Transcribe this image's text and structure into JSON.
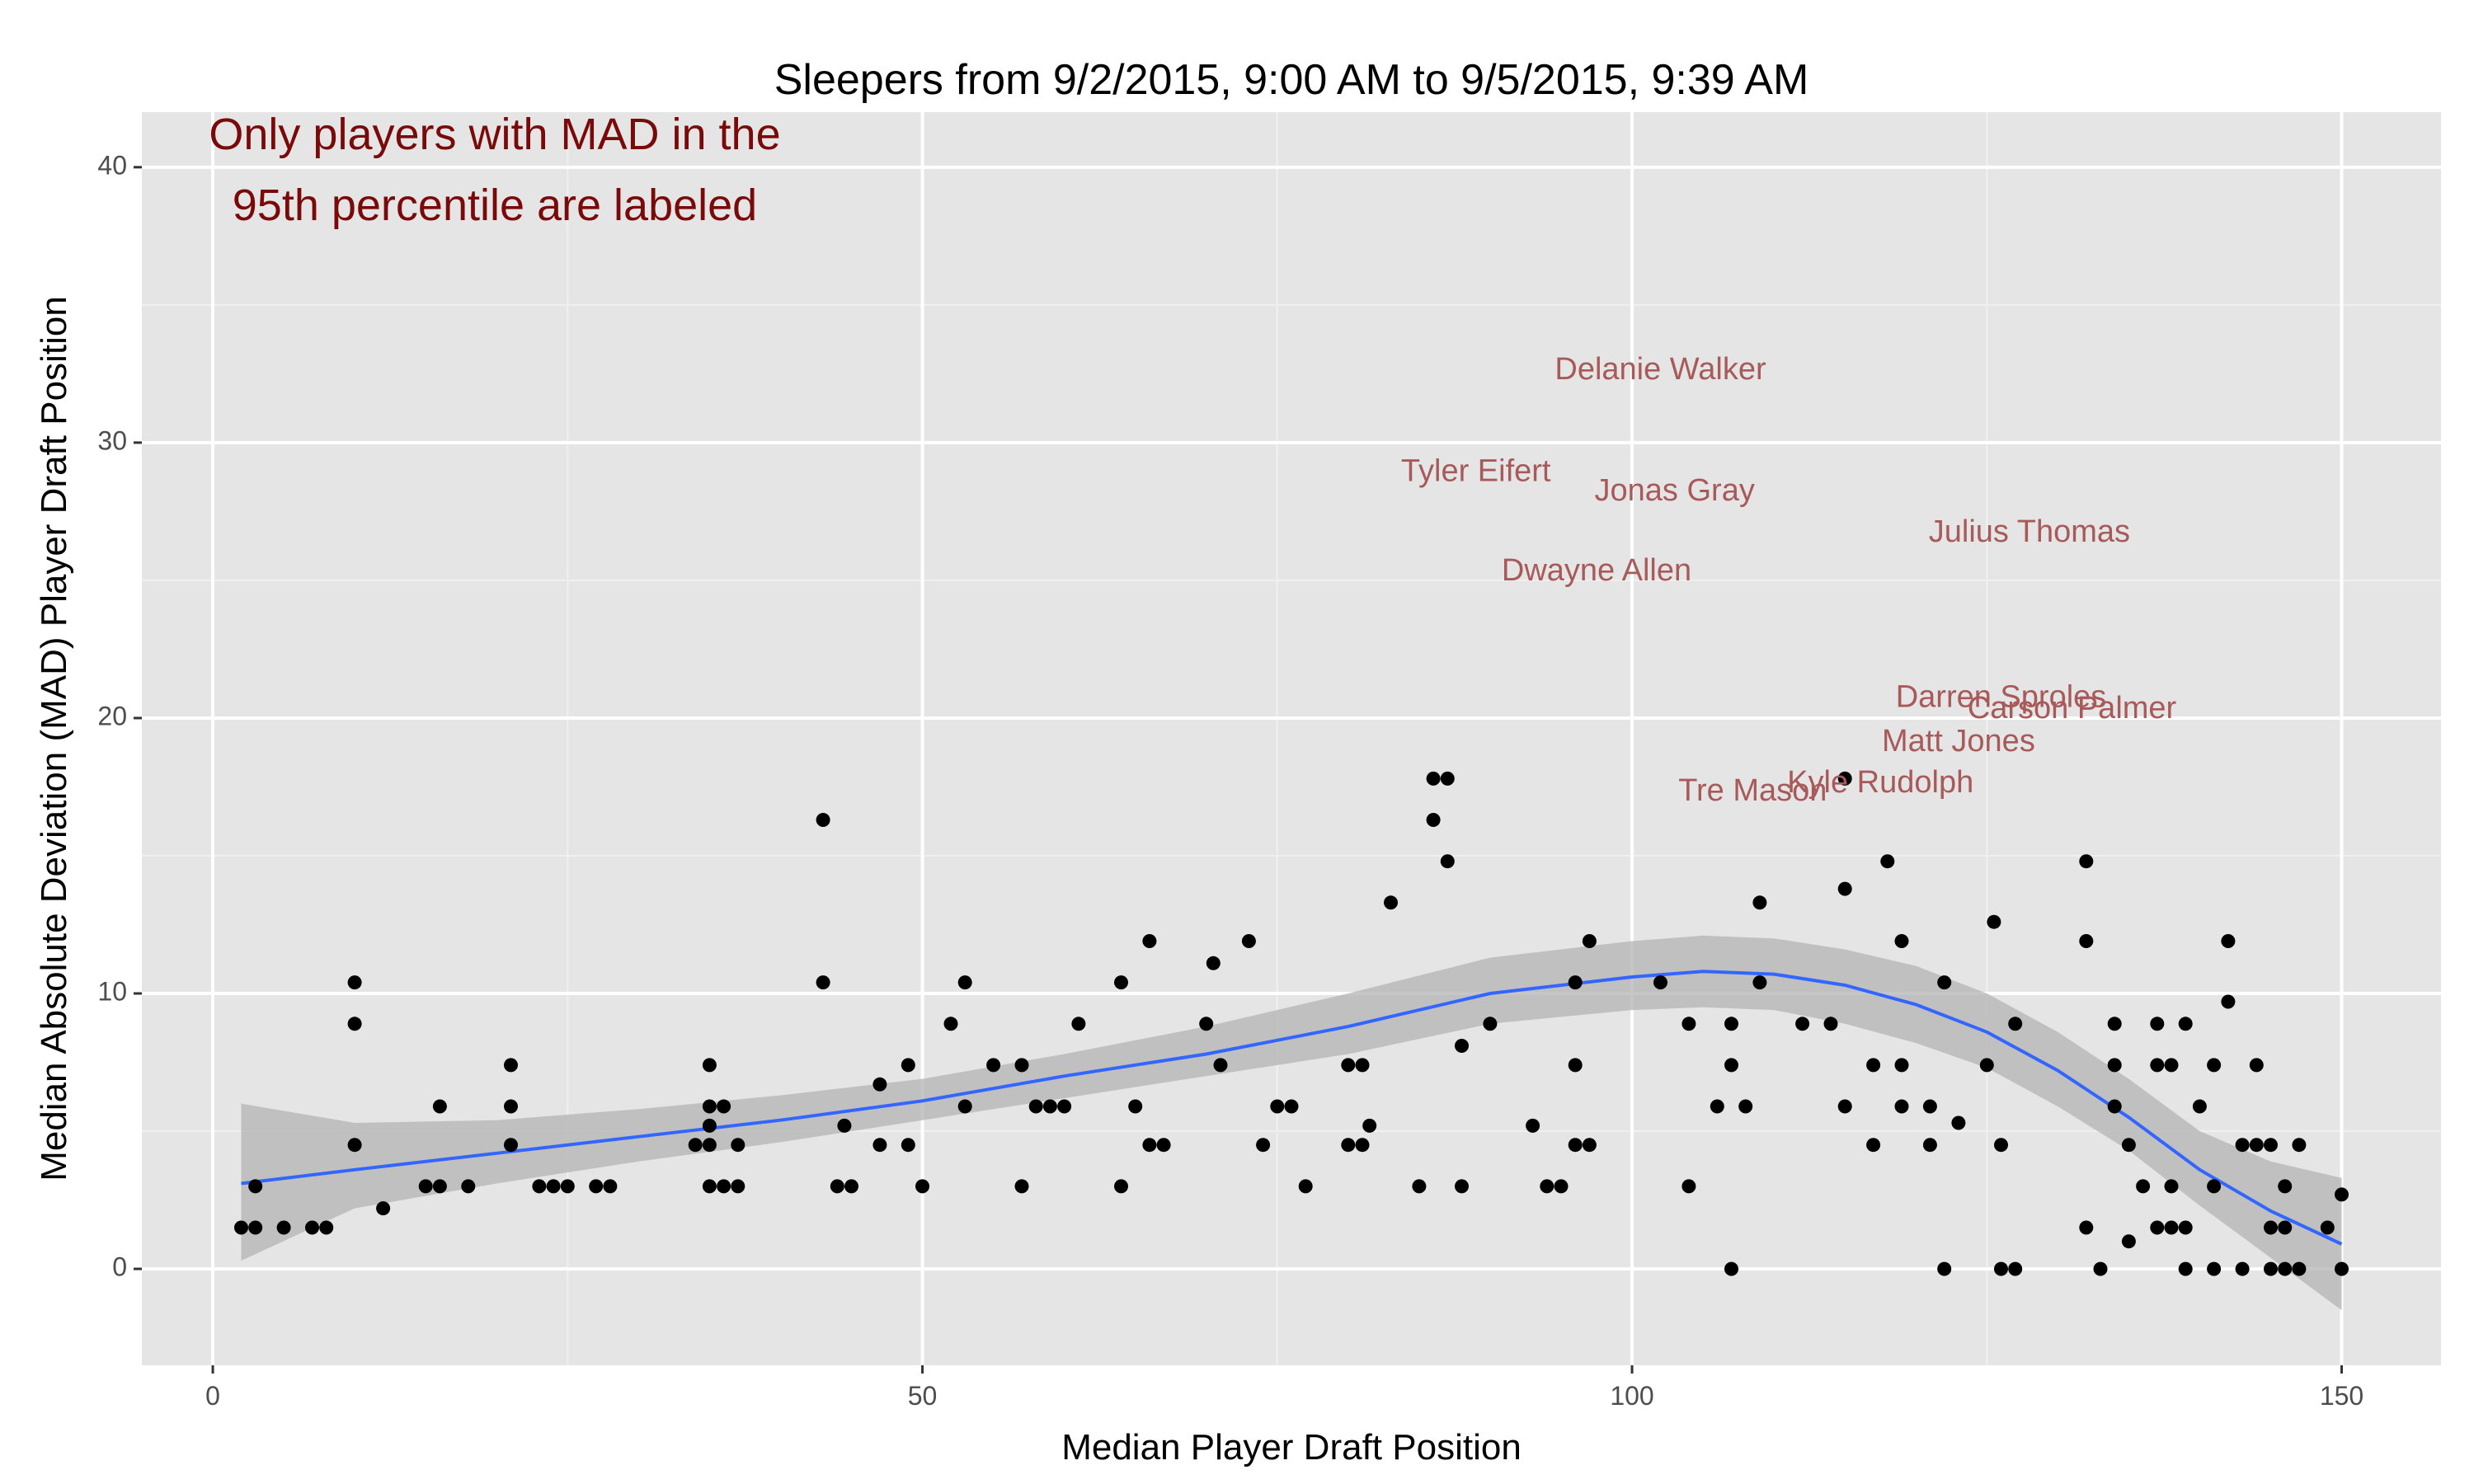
{
  "chart_data": {
    "type": "scatter",
    "title": "Sleepers from 9/2/2015, 9:00 AM to 9/5/2015, 9:39 AM",
    "xlabel": "Median Player Draft Position",
    "ylabel": "Median Absolute Deviation (MAD) Player Draft Position",
    "xlim": [
      -5,
      157
    ],
    "ylim": [
      -3.5,
      42
    ],
    "x_ticks": [
      0,
      50,
      100,
      150
    ],
    "x_tick_labels": [
      "0",
      "50",
      "100",
      "150"
    ],
    "y_ticks": [
      0,
      10,
      20,
      30,
      40
    ],
    "y_tick_labels": [
      "0",
      "10",
      "20",
      "30",
      "40"
    ],
    "grid": true,
    "legend": "none",
    "annotation": {
      "lines": [
        "Only players with MAD in the",
        "95th percentile are labeled"
      ],
      "color": "#7a0a0a"
    },
    "colors": {
      "panel": "#e5e5e5",
      "grid_major": "#ffffff",
      "grid_minor": "#f0f0f0",
      "points": "#000000",
      "smooth_line": "#3366ff",
      "ribbon": "#b3b3b3",
      "player_labels": "#a85a5a"
    },
    "points": [
      {
        "x": 2,
        "y": 1.5
      },
      {
        "x": 3,
        "y": 1.5
      },
      {
        "x": 3,
        "y": 3
      },
      {
        "x": 5,
        "y": 1.5
      },
      {
        "x": 7,
        "y": 1.5
      },
      {
        "x": 8,
        "y": 1.5
      },
      {
        "x": 10,
        "y": 10.4
      },
      {
        "x": 10,
        "y": 8.9
      },
      {
        "x": 10,
        "y": 4.5
      },
      {
        "x": 12,
        "y": 2.2
      },
      {
        "x": 15,
        "y": 3
      },
      {
        "x": 16,
        "y": 3
      },
      {
        "x": 16,
        "y": 5.9
      },
      {
        "x": 18,
        "y": 3
      },
      {
        "x": 21,
        "y": 7.4
      },
      {
        "x": 21,
        "y": 5.9
      },
      {
        "x": 21,
        "y": 4.5
      },
      {
        "x": 23,
        "y": 3
      },
      {
        "x": 24,
        "y": 3
      },
      {
        "x": 25,
        "y": 3
      },
      {
        "x": 27,
        "y": 3
      },
      {
        "x": 28,
        "y": 3
      },
      {
        "x": 34,
        "y": 4.5
      },
      {
        "x": 35,
        "y": 7.4
      },
      {
        "x": 35,
        "y": 5.9
      },
      {
        "x": 35,
        "y": 5.2
      },
      {
        "x": 35,
        "y": 4.5
      },
      {
        "x": 35,
        "y": 3
      },
      {
        "x": 36,
        "y": 5.9
      },
      {
        "x": 36,
        "y": 3
      },
      {
        "x": 37,
        "y": 4.5
      },
      {
        "x": 37,
        "y": 3
      },
      {
        "x": 43,
        "y": 16.3
      },
      {
        "x": 43,
        "y": 10.4
      },
      {
        "x": 44,
        "y": 3
      },
      {
        "x": 44.5,
        "y": 5.2
      },
      {
        "x": 45,
        "y": 3
      },
      {
        "x": 47,
        "y": 6.7
      },
      {
        "x": 47,
        "y": 4.5
      },
      {
        "x": 49,
        "y": 7.4
      },
      {
        "x": 49,
        "y": 4.5
      },
      {
        "x": 50,
        "y": 3
      },
      {
        "x": 52,
        "y": 8.9
      },
      {
        "x": 53,
        "y": 10.4
      },
      {
        "x": 53,
        "y": 5.9
      },
      {
        "x": 55,
        "y": 7.4
      },
      {
        "x": 57,
        "y": 7.4
      },
      {
        "x": 57,
        "y": 3
      },
      {
        "x": 58,
        "y": 5.9
      },
      {
        "x": 59,
        "y": 5.9
      },
      {
        "x": 60,
        "y": 5.9
      },
      {
        "x": 61,
        "y": 8.9
      },
      {
        "x": 64,
        "y": 10.4
      },
      {
        "x": 64,
        "y": 3
      },
      {
        "x": 65,
        "y": 5.9
      },
      {
        "x": 66,
        "y": 11.9
      },
      {
        "x": 66,
        "y": 4.5
      },
      {
        "x": 67,
        "y": 4.5
      },
      {
        "x": 70,
        "y": 8.9
      },
      {
        "x": 70.5,
        "y": 11.1
      },
      {
        "x": 71,
        "y": 7.4
      },
      {
        "x": 73,
        "y": 11.9
      },
      {
        "x": 74,
        "y": 4.5
      },
      {
        "x": 75,
        "y": 5.9
      },
      {
        "x": 76,
        "y": 5.9
      },
      {
        "x": 77,
        "y": 3
      },
      {
        "x": 80,
        "y": 7.4
      },
      {
        "x": 80,
        "y": 4.5
      },
      {
        "x": 81,
        "y": 7.4
      },
      {
        "x": 81,
        "y": 4.5
      },
      {
        "x": 81.5,
        "y": 5.2
      },
      {
        "x": 83,
        "y": 13.3
      },
      {
        "x": 85,
        "y": 3
      },
      {
        "x": 86,
        "y": 17.8
      },
      {
        "x": 86,
        "y": 16.3
      },
      {
        "x": 87,
        "y": 17.8
      },
      {
        "x": 87,
        "y": 14.8
      },
      {
        "x": 88,
        "y": 8.1
      },
      {
        "x": 88,
        "y": 3
      },
      {
        "x": 90,
        "y": 8.9
      },
      {
        "x": 93,
        "y": 5.2
      },
      {
        "x": 94,
        "y": 3
      },
      {
        "x": 95,
        "y": 3
      },
      {
        "x": 96,
        "y": 10.4
      },
      {
        "x": 96,
        "y": 7.4
      },
      {
        "x": 96,
        "y": 4.5
      },
      {
        "x": 97,
        "y": 11.9
      },
      {
        "x": 97,
        "y": 4.5
      },
      {
        "x": 102,
        "y": 10.4
      },
      {
        "x": 104,
        "y": 8.9
      },
      {
        "x": 104,
        "y": 3
      },
      {
        "x": 106,
        "y": 5.9
      },
      {
        "x": 107,
        "y": 8.9
      },
      {
        "x": 107,
        "y": 7.4
      },
      {
        "x": 107,
        "y": 0
      },
      {
        "x": 108,
        "y": 5.9
      },
      {
        "x": 109,
        "y": 13.3
      },
      {
        "x": 109,
        "y": 10.4
      },
      {
        "x": 112,
        "y": 8.9
      },
      {
        "x": 114,
        "y": 8.9
      },
      {
        "x": 115,
        "y": 17.8
      },
      {
        "x": 115,
        "y": 13.8
      },
      {
        "x": 115,
        "y": 5.9
      },
      {
        "x": 117,
        "y": 7.4
      },
      {
        "x": 117,
        "y": 4.5
      },
      {
        "x": 118,
        "y": 14.8
      },
      {
        "x": 119,
        "y": 11.9
      },
      {
        "x": 119,
        "y": 7.4
      },
      {
        "x": 119,
        "y": 5.9
      },
      {
        "x": 121,
        "y": 5.9
      },
      {
        "x": 121,
        "y": 4.5
      },
      {
        "x": 122,
        "y": 10.4
      },
      {
        "x": 122,
        "y": 0
      },
      {
        "x": 123,
        "y": 5.3
      },
      {
        "x": 125,
        "y": 7.4
      },
      {
        "x": 125.5,
        "y": 12.6
      },
      {
        "x": 126,
        "y": 4.5
      },
      {
        "x": 126,
        "y": 0
      },
      {
        "x": 127,
        "y": 8.9
      },
      {
        "x": 127,
        "y": 0
      },
      {
        "x": 132,
        "y": 14.8
      },
      {
        "x": 132,
        "y": 11.9
      },
      {
        "x": 132,
        "y": 1.5
      },
      {
        "x": 133,
        "y": 0
      },
      {
        "x": 134,
        "y": 8.9
      },
      {
        "x": 134,
        "y": 7.4
      },
      {
        "x": 134,
        "y": 5.9
      },
      {
        "x": 135,
        "y": 4.5
      },
      {
        "x": 135,
        "y": 1
      },
      {
        "x": 136,
        "y": 3
      },
      {
        "x": 137,
        "y": 8.9
      },
      {
        "x": 137,
        "y": 7.4
      },
      {
        "x": 137,
        "y": 1.5
      },
      {
        "x": 138,
        "y": 7.4
      },
      {
        "x": 138,
        "y": 3
      },
      {
        "x": 138,
        "y": 1.5
      },
      {
        "x": 139,
        "y": 8.9
      },
      {
        "x": 139,
        "y": 1.5
      },
      {
        "x": 139,
        "y": 0
      },
      {
        "x": 140,
        "y": 5.9
      },
      {
        "x": 141,
        "y": 7.4
      },
      {
        "x": 141,
        "y": 3
      },
      {
        "x": 141,
        "y": 0
      },
      {
        "x": 142,
        "y": 11.9
      },
      {
        "x": 142,
        "y": 9.7
      },
      {
        "x": 143,
        "y": 4.5
      },
      {
        "x": 143,
        "y": 0
      },
      {
        "x": 144,
        "y": 7.4
      },
      {
        "x": 144,
        "y": 4.5
      },
      {
        "x": 145,
        "y": 4.5
      },
      {
        "x": 145,
        "y": 1.5
      },
      {
        "x": 145,
        "y": 0
      },
      {
        "x": 146,
        "y": 3
      },
      {
        "x": 146,
        "y": 1.5
      },
      {
        "x": 146,
        "y": 0
      },
      {
        "x": 147,
        "y": 4.5
      },
      {
        "x": 147,
        "y": 0
      },
      {
        "x": 149,
        "y": 1.5
      },
      {
        "x": 150,
        "y": 2.7
      },
      {
        "x": 150,
        "y": 0
      }
    ],
    "smooth": {
      "x": [
        2,
        10,
        20,
        30,
        40,
        50,
        60,
        70,
        80,
        90,
        100,
        105,
        110,
        115,
        120,
        125,
        130,
        135,
        140,
        145,
        150
      ],
      "y": [
        3.1,
        3.6,
        4.2,
        4.8,
        5.4,
        6.1,
        7.0,
        7.8,
        8.8,
        10.0,
        10.6,
        10.8,
        10.7,
        10.3,
        9.6,
        8.6,
        7.2,
        5.5,
        3.6,
        2.1,
        0.9
      ],
      "lower": [
        0.3,
        2.2,
        3.1,
        3.9,
        4.6,
        5.4,
        6.2,
        7.0,
        7.8,
        8.9,
        9.4,
        9.5,
        9.4,
        8.9,
        8.2,
        7.3,
        5.9,
        4.3,
        2.3,
        0.4,
        -1.5
      ],
      "upper": [
        6.0,
        5.3,
        5.4,
        5.8,
        6.3,
        6.9,
        7.8,
        8.8,
        10.0,
        11.3,
        11.9,
        12.1,
        12.0,
        11.6,
        11.0,
        10.0,
        8.6,
        6.9,
        5.0,
        3.9,
        3.3
      ]
    },
    "labels": [
      {
        "text": "Delanie Walker",
        "x": 102,
        "y": 32.6
      },
      {
        "text": "Tyler Eifert",
        "x": 89,
        "y": 28.9
      },
      {
        "text": "Jonas Gray",
        "x": 103,
        "y": 28.2
      },
      {
        "text": "Julius Thomas",
        "x": 128,
        "y": 26.7
      },
      {
        "text": "Dwayne Allen",
        "x": 97.5,
        "y": 25.3
      },
      {
        "text": "Darren Sproles",
        "x": 126,
        "y": 20.7
      },
      {
        "text": "Carson Palmer",
        "x": 131,
        "y": 20.3
      },
      {
        "text": "Matt Jones",
        "x": 123,
        "y": 19.1
      },
      {
        "text": "Kyle Rudolph",
        "x": 117.5,
        "y": 17.6
      },
      {
        "text": "Tre Mason",
        "x": 108.5,
        "y": 17.3
      }
    ]
  }
}
